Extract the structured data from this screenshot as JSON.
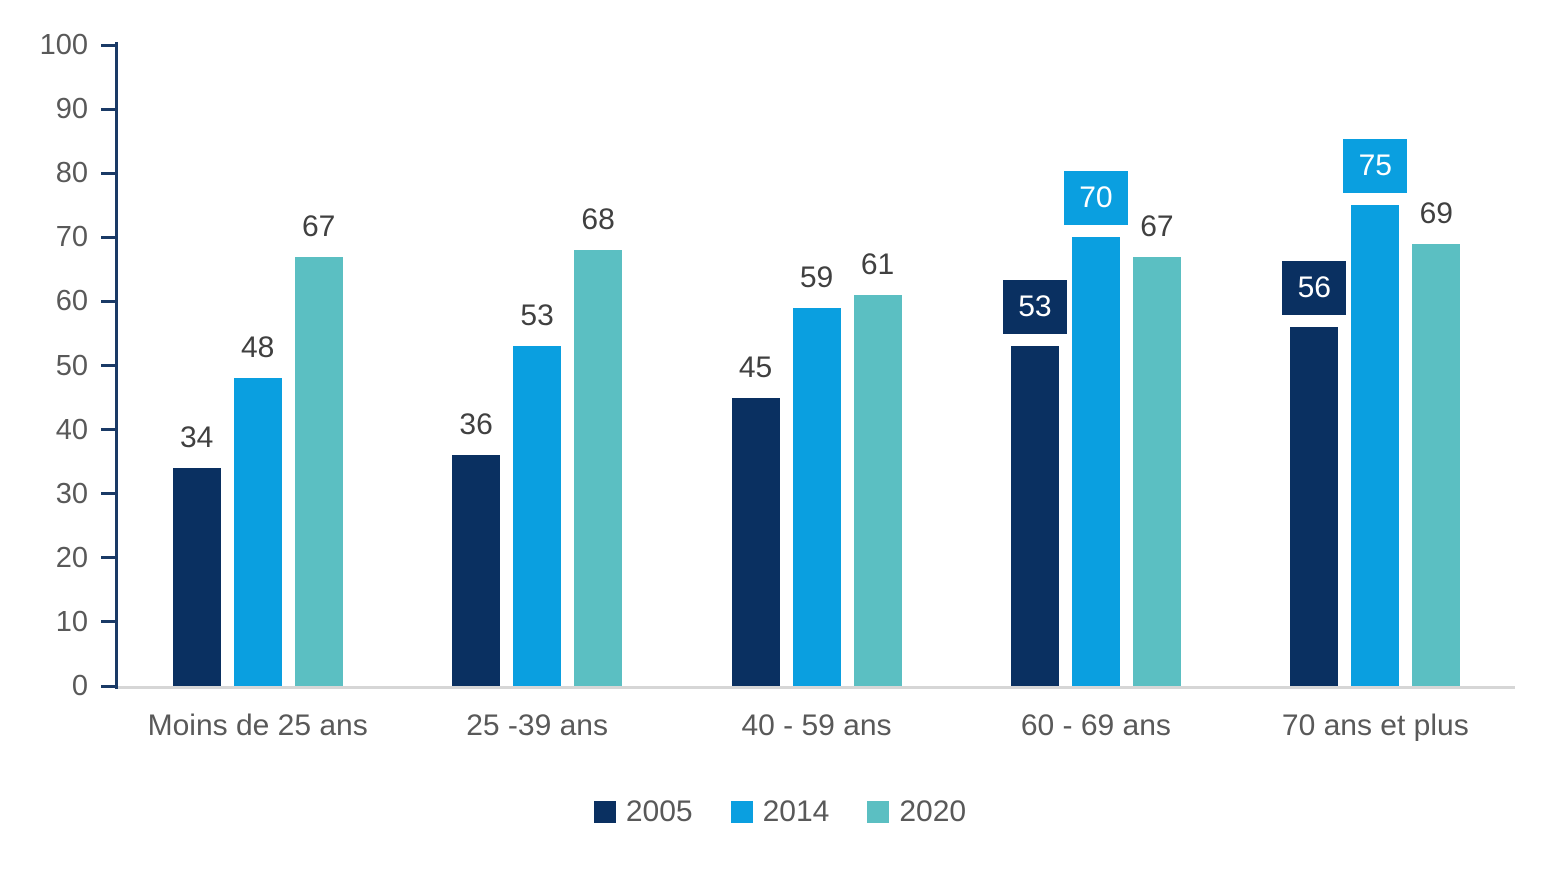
{
  "chart_data": {
    "type": "bar",
    "title": "",
    "xlabel": "",
    "ylabel": "",
    "categories": [
      "Moins de 25 ans",
      "25 -39 ans",
      "40 - 59 ans",
      "60 - 69 ans",
      "70 ans et plus"
    ],
    "series": [
      {
        "name": "2005",
        "color": "#0a3061",
        "values": [
          34,
          36,
          45,
          53,
          56
        ],
        "boxed_labels": [
          false,
          false,
          false,
          true,
          true
        ]
      },
      {
        "name": "2014",
        "color": "#0a9fe0",
        "values": [
          48,
          53,
          59,
          70,
          75
        ],
        "boxed_labels": [
          false,
          false,
          false,
          true,
          true
        ]
      },
      {
        "name": "2020",
        "color": "#5bbfc2",
        "values": [
          67,
          68,
          61,
          67,
          69
        ],
        "boxed_labels": [
          false,
          false,
          false,
          false,
          false
        ]
      }
    ],
    "ylim": [
      0,
      100
    ],
    "ytick_step": 10,
    "ytick_labels": [
      "0",
      "10",
      "20",
      "30",
      "40",
      "50",
      "60",
      "70",
      "80",
      "90",
      "100"
    ],
    "grid": false,
    "legend_position": "bottom",
    "legend": [
      "2005",
      "2014",
      "2020"
    ],
    "colors": {
      "axis_line": "#1a3a66",
      "baseline": "#d6d6d6",
      "tick_label_text": "#595959",
      "category_text": "#595959",
      "data_label_text": "#404040",
      "boxed_label_text": "#ffffff",
      "legend_text": "#595959",
      "background": "#ffffff"
    }
  }
}
